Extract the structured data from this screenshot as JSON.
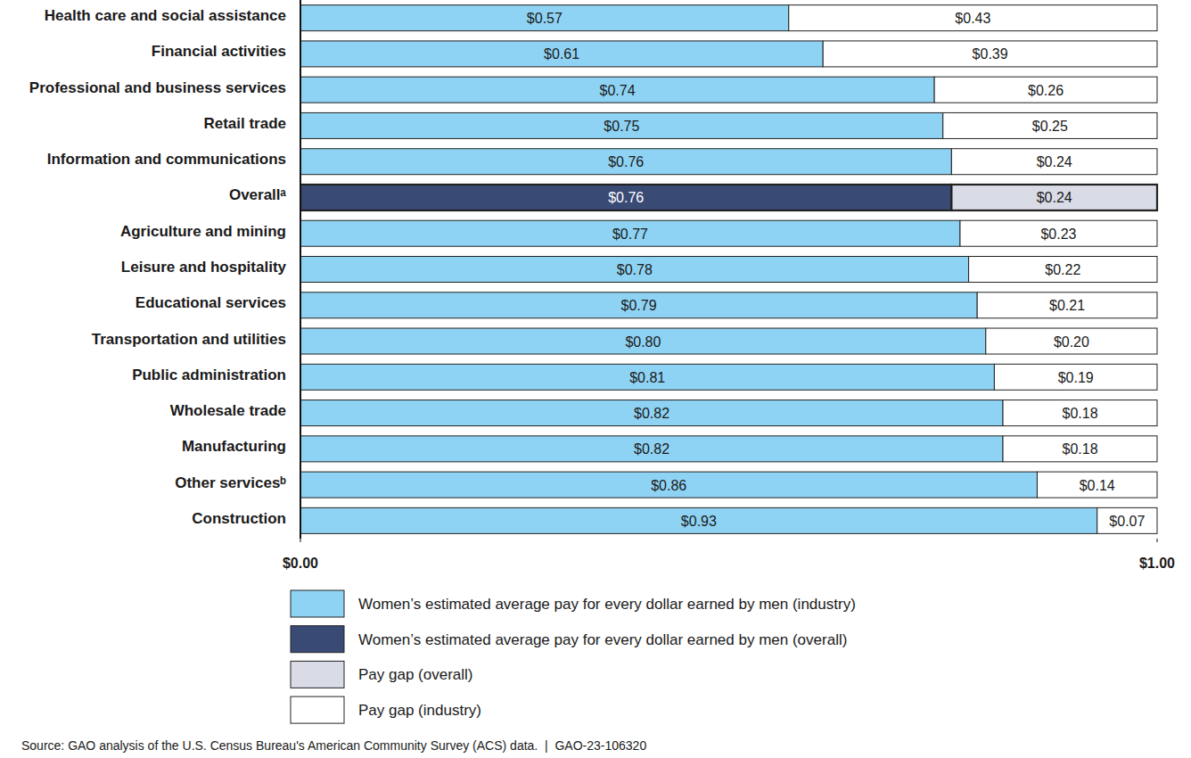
{
  "chart_data": {
    "type": "bar",
    "orientation": "horizontal",
    "stacked": true,
    "data_labels": true,
    "grid": false,
    "legend": "bottom",
    "caption": "Source: GAO analysis of the U.S. Census Bureau's American Community Survey (ACS) data.  |  GAO-23-106320",
    "categories": [
      "Health care and social assistance",
      "Financial activities",
      "Professional and business services",
      "Retail trade",
      "Information and communications",
      "Overallᵃ",
      "Agriculture and mining",
      "Leisure and hospitality",
      "Educational services",
      "Transportation and utilities",
      "Public administration",
      "Wholesale trade",
      "Manufacturing",
      "Other servicesᵇ",
      "Construction"
    ],
    "xlim": [
      0,
      1
    ],
    "xticks": [
      {
        "value": 0,
        "label": "$0.00"
      },
      {
        "value": 1,
        "label": "$1.00"
      }
    ],
    "series": [
      {
        "name": "Women’s estimated average pay for every dollar earned by men (industry)",
        "color": "#8fd3f4",
        "values": [
          0.57,
          0.61,
          0.74,
          0.75,
          0.76,
          null,
          0.77,
          0.78,
          0.79,
          0.8,
          0.81,
          0.82,
          0.82,
          0.86,
          0.93
        ],
        "value_labels": [
          "$0.57",
          "$0.61",
          "$0.74",
          "$0.75",
          "$0.76",
          null,
          "$0.77",
          "$0.78",
          "$0.79",
          "$0.80",
          "$0.81",
          "$0.82",
          "$0.82",
          "$0.86",
          "$0.93"
        ]
      },
      {
        "name": "Women’s estimated average pay for every dollar earned by men (overall)",
        "color": "#394a75",
        "values": [
          null,
          null,
          null,
          null,
          null,
          0.76,
          null,
          null,
          null,
          null,
          null,
          null,
          null,
          null,
          null
        ],
        "value_labels": [
          null,
          null,
          null,
          null,
          null,
          "$0.76",
          null,
          null,
          null,
          null,
          null,
          null,
          null,
          null,
          null
        ]
      },
      {
        "name": "Pay gap (overall)",
        "color": "#d9dbe7",
        "values": [
          null,
          null,
          null,
          null,
          null,
          0.24,
          null,
          null,
          null,
          null,
          null,
          null,
          null,
          null,
          null
        ],
        "value_labels": [
          null,
          null,
          null,
          null,
          null,
          "$0.24",
          null,
          null,
          null,
          null,
          null,
          null,
          null,
          null,
          null
        ]
      },
      {
        "name": "Pay gap (industry)",
        "color": "#ffffff",
        "values": [
          0.43,
          0.39,
          0.26,
          0.25,
          0.24,
          null,
          0.23,
          0.22,
          0.21,
          0.2,
          0.19,
          0.18,
          0.18,
          0.14,
          0.07
        ],
        "value_labels": [
          "$0.43",
          "$0.39",
          "$0.26",
          "$0.25",
          "$0.24",
          null,
          "$0.23",
          "$0.22",
          "$0.21",
          "$0.20",
          "$0.19",
          "$0.18",
          "$0.18",
          "$0.14",
          "$0.07"
        ]
      }
    ]
  }
}
